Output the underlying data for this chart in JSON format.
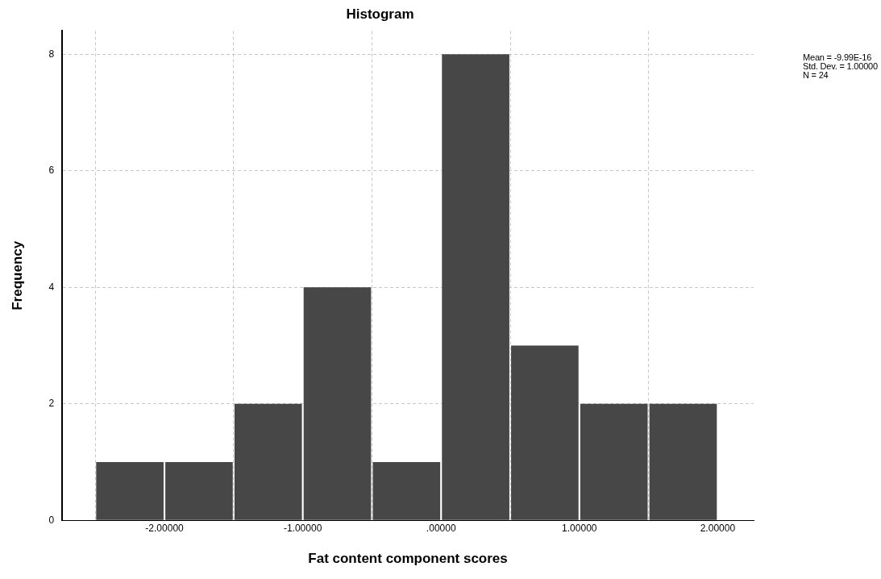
{
  "chart_data": {
    "type": "histogram",
    "title": "Histogram",
    "xlabel": "Fat content component scores",
    "ylabel": "Frequency",
    "bins": [
      -2.5,
      -2.0,
      -1.5,
      -1.0,
      -0.5,
      0.0,
      0.5,
      1.0,
      1.5,
      2.0
    ],
    "values": [
      1,
      1,
      2,
      4,
      1,
      8,
      3,
      2,
      2
    ],
    "color": "#474747",
    "xlim": [
      -2.74,
      2.26
    ],
    "xticks": [
      {
        "value": -2,
        "label": "-2.00000"
      },
      {
        "value": -1,
        "label": "-1.00000"
      },
      {
        "value": 0,
        "label": ".00000"
      },
      {
        "value": 1,
        "label": "1.00000"
      },
      {
        "value": 2,
        "label": "2.00000"
      }
    ],
    "ylim": [
      0,
      8.4
    ],
    "yticks": [
      0,
      2,
      4,
      6,
      8
    ],
    "grid": true,
    "annotations": [
      "Mean = -9.99E-16",
      "Std. Dev. = 1.00000",
      "N = 24"
    ]
  }
}
